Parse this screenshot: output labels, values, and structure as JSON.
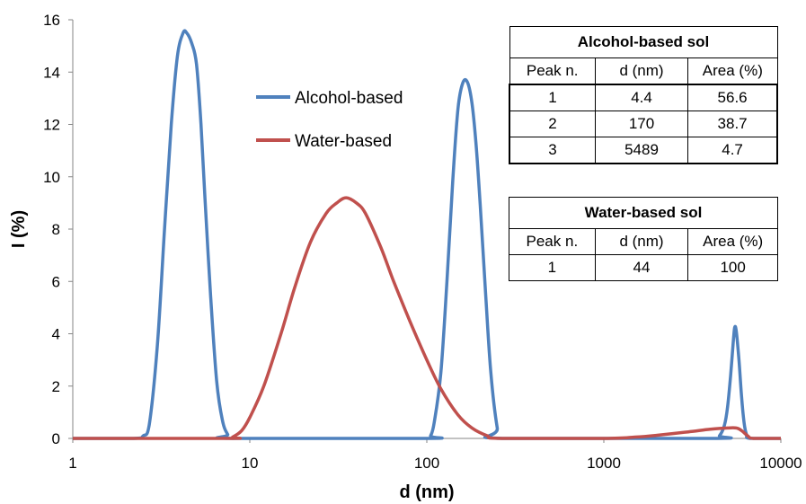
{
  "chart_data": {
    "type": "line",
    "xscale": "log",
    "xlim": [
      1,
      10000
    ],
    "ylim": [
      0,
      16
    ],
    "xticks": [
      "1",
      "10",
      "100",
      "1000",
      "10000"
    ],
    "yticks": [
      "0",
      "2",
      "4",
      "6",
      "8",
      "10",
      "12",
      "14",
      "16"
    ],
    "xlabel": "d (nm)",
    "ylabel": "I (%)",
    "grid": false,
    "legend_position": "upper-middle",
    "series": [
      {
        "name": "Alcohol-based",
        "color": "#4F81BD",
        "x": [
          1,
          2.2,
          2.5,
          2.7,
          3.0,
          3.3,
          3.6,
          3.9,
          4.2,
          4.4,
          4.7,
          5.0,
          5.3,
          5.6,
          6.0,
          6.5,
          7.0,
          7.5,
          8.0,
          100,
          105,
          110,
          120,
          130,
          140,
          150,
          160,
          170,
          180,
          190,
          200,
          215,
          230,
          250,
          265,
          4200,
          4500,
          4800,
          5000,
          5200,
          5400,
          5489,
          5600,
          5800,
          6000,
          6200,
          6400,
          6700,
          10000
        ],
        "y": [
          0,
          0,
          0.1,
          0.5,
          3.5,
          8.0,
          12.0,
          14.6,
          15.5,
          15.5,
          15.1,
          14.3,
          12.0,
          9.0,
          5.5,
          2.2,
          0.7,
          0.15,
          0,
          0,
          0.1,
          0.6,
          2.5,
          6.0,
          9.8,
          12.6,
          13.6,
          13.6,
          12.8,
          11.2,
          9.0,
          5.5,
          2.5,
          0.4,
          0,
          0,
          0.1,
          0.5,
          1.2,
          2.4,
          3.8,
          4.25,
          4.1,
          3.0,
          1.6,
          0.6,
          0.15,
          0,
          0
        ]
      },
      {
        "name": "Water-based",
        "color": "#C0504D",
        "x": [
          1,
          7.5,
          8,
          9,
          10,
          12,
          15,
          18,
          22,
          27,
          31,
          35,
          40,
          45,
          55,
          65,
          80,
          100,
          120,
          150,
          180,
          220,
          260,
          1000,
          1500,
          2000,
          3000,
          4000,
          5000,
          5600,
          6000,
          6500,
          7000,
          10000
        ],
        "y": [
          0,
          0,
          0.05,
          0.3,
          0.8,
          2.0,
          4.0,
          5.8,
          7.5,
          8.6,
          9.0,
          9.2,
          9.0,
          8.6,
          7.3,
          6.0,
          4.5,
          3.0,
          1.9,
          0.9,
          0.4,
          0.1,
          0,
          0,
          0.05,
          0.12,
          0.25,
          0.35,
          0.4,
          0.4,
          0.3,
          0.1,
          0,
          0
        ]
      }
    ],
    "tables": [
      {
        "title": "Alcohol-based sol",
        "headers": [
          "Peak n.",
          "d (nm)",
          "Area (%)"
        ],
        "rows": [
          [
            "1",
            "4.4",
            "56.6"
          ],
          [
            "2",
            "170",
            "38.7"
          ],
          [
            "3",
            "5489",
            "4.7"
          ]
        ]
      },
      {
        "title": "Water-based sol",
        "headers": [
          "Peak n.",
          "d (nm)",
          "Area (%)"
        ],
        "rows": [
          [
            "1",
            "44",
            "100"
          ]
        ]
      }
    ]
  }
}
